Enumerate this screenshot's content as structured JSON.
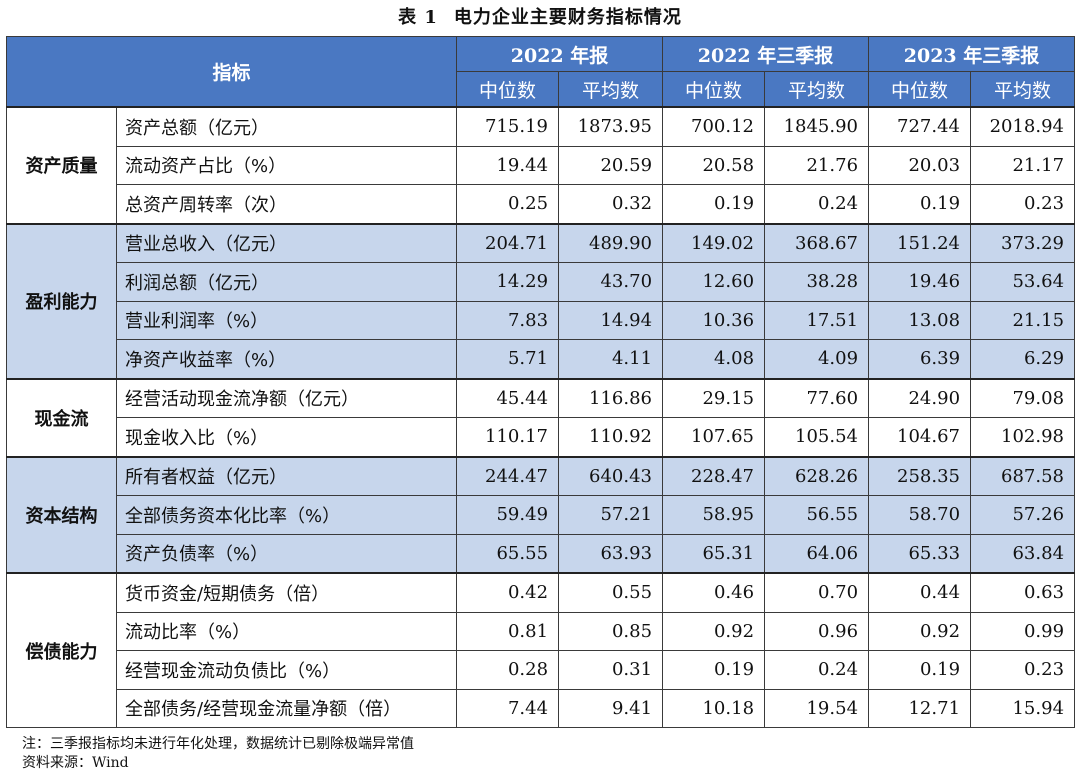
{
  "caption": {
    "number": "表 1",
    "title": "电力企业主要财务指标情况"
  },
  "header": {
    "indicator": "指标",
    "periods": [
      "2022 年报",
      "2022 年三季报",
      "2023 年三季报"
    ],
    "median": "中位数",
    "mean": "平均数"
  },
  "groups": [
    {
      "name": "资产质量",
      "shaded": false,
      "rows": [
        {
          "label": "资产总额（亿元）",
          "values": [
            "715.19",
            "1873.95",
            "700.12",
            "1845.90",
            "727.44",
            "2018.94"
          ]
        },
        {
          "label": "流动资产占比（%）",
          "values": [
            "19.44",
            "20.59",
            "20.58",
            "21.76",
            "20.03",
            "21.17"
          ]
        },
        {
          "label": "总资产周转率（次）",
          "values": [
            "0.25",
            "0.32",
            "0.19",
            "0.24",
            "0.19",
            "0.23"
          ]
        }
      ]
    },
    {
      "name": "盈利能力",
      "shaded": true,
      "rows": [
        {
          "label": "营业总收入（亿元）",
          "values": [
            "204.71",
            "489.90",
            "149.02",
            "368.67",
            "151.24",
            "373.29"
          ]
        },
        {
          "label": "利润总额（亿元）",
          "values": [
            "14.29",
            "43.70",
            "12.60",
            "38.28",
            "19.46",
            "53.64"
          ]
        },
        {
          "label": "营业利润率（%）",
          "values": [
            "7.83",
            "14.94",
            "10.36",
            "17.51",
            "13.08",
            "21.15"
          ]
        },
        {
          "label": "净资产收益率（%）",
          "values": [
            "5.71",
            "4.11",
            "4.08",
            "4.09",
            "6.39",
            "6.29"
          ]
        }
      ]
    },
    {
      "name": "现金流",
      "shaded": false,
      "rows": [
        {
          "label": "经营活动现金流净额（亿元）",
          "values": [
            "45.44",
            "116.86",
            "29.15",
            "77.60",
            "24.90",
            "79.08"
          ]
        },
        {
          "label": "现金收入比（%）",
          "values": [
            "110.17",
            "110.92",
            "107.65",
            "105.54",
            "104.67",
            "102.98"
          ]
        }
      ]
    },
    {
      "name": "资本结构",
      "shaded": true,
      "rows": [
        {
          "label": "所有者权益（亿元）",
          "values": [
            "244.47",
            "640.43",
            "228.47",
            "628.26",
            "258.35",
            "687.58"
          ]
        },
        {
          "label": "全部债务资本化比率（%）",
          "values": [
            "59.49",
            "57.21",
            "58.95",
            "56.55",
            "58.70",
            "57.26"
          ]
        },
        {
          "label": "资产负债率（%）",
          "values": [
            "65.55",
            "63.93",
            "65.31",
            "64.06",
            "65.33",
            "63.84"
          ]
        }
      ]
    },
    {
      "name": "偿债能力",
      "shaded": false,
      "rows": [
        {
          "label": "货币资金/短期债务（倍）",
          "values": [
            "0.42",
            "0.55",
            "0.46",
            "0.70",
            "0.44",
            "0.63"
          ]
        },
        {
          "label": "流动比率（%）",
          "values": [
            "0.81",
            "0.85",
            "0.92",
            "0.96",
            "0.92",
            "0.99"
          ]
        },
        {
          "label": "经营现金流动负债比（%）",
          "values": [
            "0.28",
            "0.31",
            "0.19",
            "0.24",
            "0.19",
            "0.23"
          ]
        },
        {
          "label": "全部债务/经营现金流量净额（倍）",
          "values": [
            "7.44",
            "9.41",
            "10.18",
            "19.54",
            "12.71",
            "15.94"
          ]
        }
      ]
    }
  ],
  "notes": {
    "note": "注：三季报指标均未进行年化处理，数据统计已剔除极端异常值",
    "source": "资料来源：Wind"
  }
}
